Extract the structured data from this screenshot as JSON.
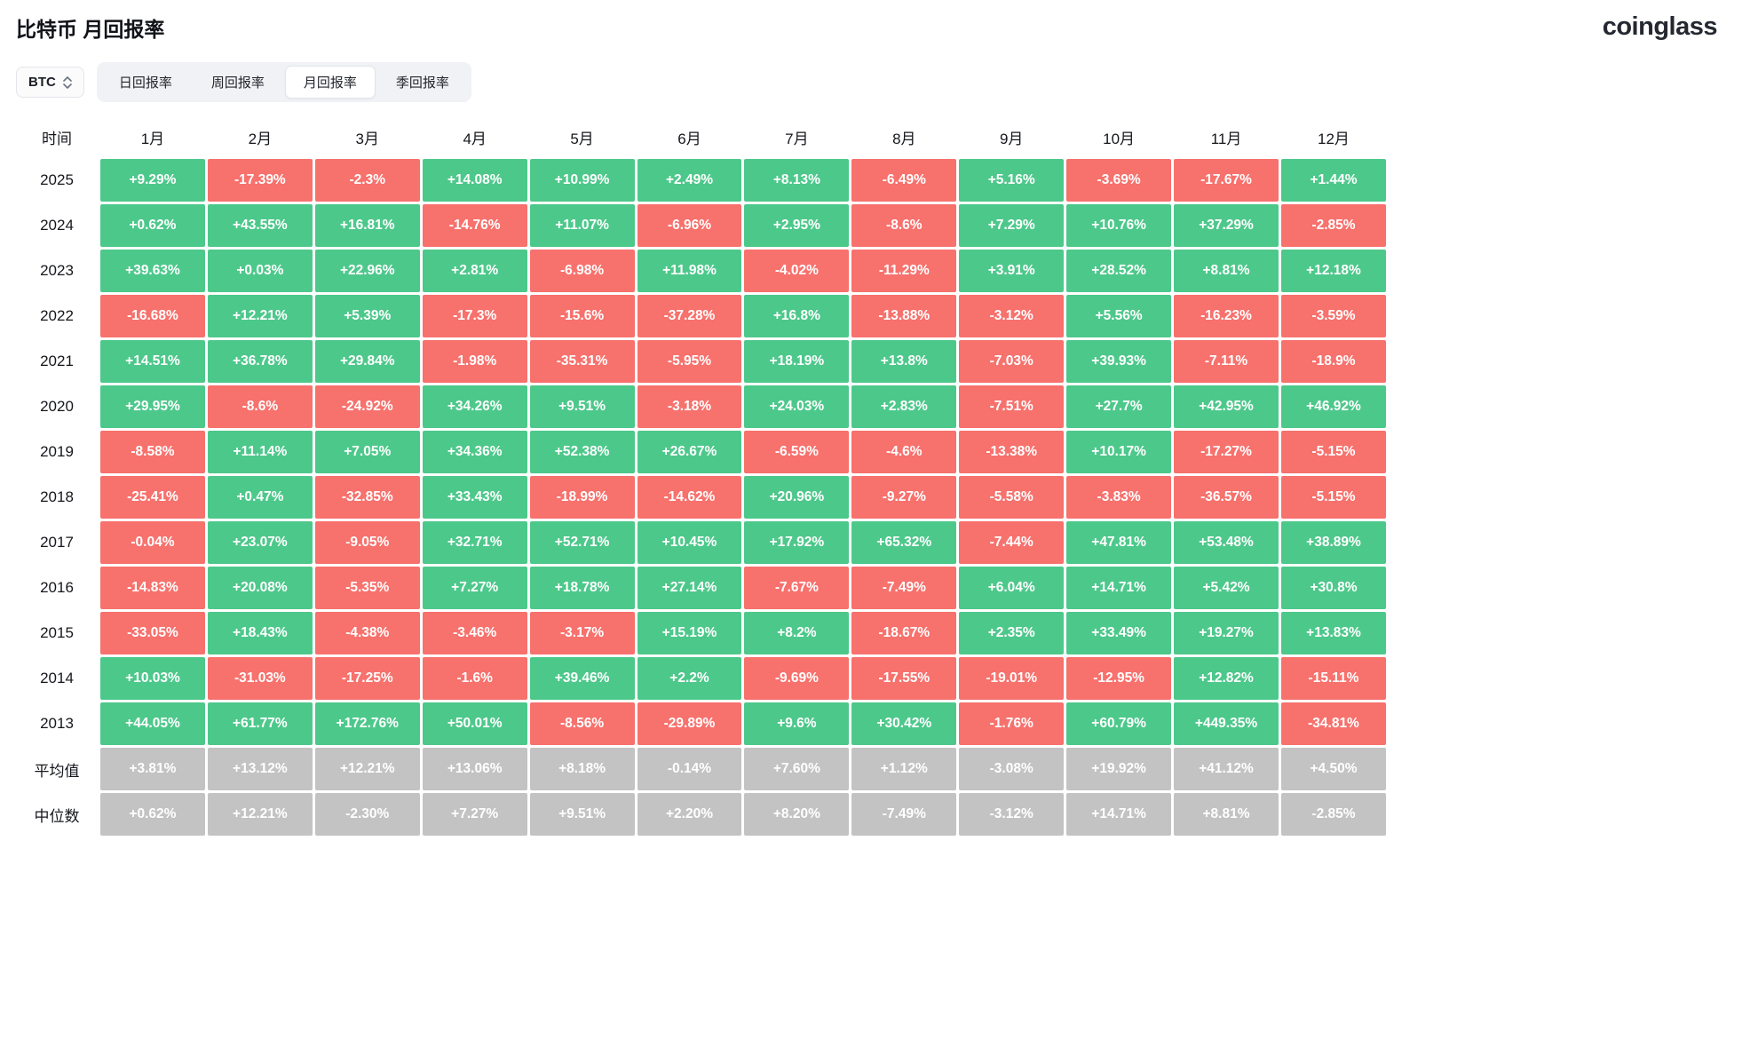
{
  "page": {
    "title": "比特币 月回报率",
    "logo": "coinglass"
  },
  "controls": {
    "symbol": "BTC",
    "tabs": [
      {
        "label": "日回报率",
        "active": false
      },
      {
        "label": "周回报率",
        "active": false
      },
      {
        "label": "月回报率",
        "active": true
      },
      {
        "label": "季回报率",
        "active": false
      }
    ]
  },
  "colors": {
    "positive": "#4dc88b",
    "negative": "#f7716d",
    "summary": "#c3c3c3"
  },
  "chart_data": {
    "type": "heatmap",
    "title": "比特币 月回报率",
    "legend_position": "none",
    "grid": false,
    "columns": [
      "时间",
      "1月",
      "2月",
      "3月",
      "4月",
      "5月",
      "6月",
      "7月",
      "8月",
      "9月",
      "10月",
      "11月",
      "12月"
    ],
    "rows": [
      {
        "label": "2025",
        "kind": "year",
        "values": [
          "+9.29%",
          "-17.39%",
          "-2.3%",
          "+14.08%",
          "+10.99%",
          "+2.49%",
          "+8.13%",
          "-6.49%",
          "+5.16%",
          "-3.69%",
          "-17.67%",
          "+1.44%"
        ]
      },
      {
        "label": "2024",
        "kind": "year",
        "values": [
          "+0.62%",
          "+43.55%",
          "+16.81%",
          "-14.76%",
          "+11.07%",
          "-6.96%",
          "+2.95%",
          "-8.6%",
          "+7.29%",
          "+10.76%",
          "+37.29%",
          "-2.85%"
        ]
      },
      {
        "label": "2023",
        "kind": "year",
        "values": [
          "+39.63%",
          "+0.03%",
          "+22.96%",
          "+2.81%",
          "-6.98%",
          "+11.98%",
          "-4.02%",
          "-11.29%",
          "+3.91%",
          "+28.52%",
          "+8.81%",
          "+12.18%"
        ]
      },
      {
        "label": "2022",
        "kind": "year",
        "values": [
          "-16.68%",
          "+12.21%",
          "+5.39%",
          "-17.3%",
          "-15.6%",
          "-37.28%",
          "+16.8%",
          "-13.88%",
          "-3.12%",
          "+5.56%",
          "-16.23%",
          "-3.59%"
        ]
      },
      {
        "label": "2021",
        "kind": "year",
        "values": [
          "+14.51%",
          "+36.78%",
          "+29.84%",
          "-1.98%",
          "-35.31%",
          "-5.95%",
          "+18.19%",
          "+13.8%",
          "-7.03%",
          "+39.93%",
          "-7.11%",
          "-18.9%"
        ]
      },
      {
        "label": "2020",
        "kind": "year",
        "values": [
          "+29.95%",
          "-8.6%",
          "-24.92%",
          "+34.26%",
          "+9.51%",
          "-3.18%",
          "+24.03%",
          "+2.83%",
          "-7.51%",
          "+27.7%",
          "+42.95%",
          "+46.92%"
        ]
      },
      {
        "label": "2019",
        "kind": "year",
        "values": [
          "-8.58%",
          "+11.14%",
          "+7.05%",
          "+34.36%",
          "+52.38%",
          "+26.67%",
          "-6.59%",
          "-4.6%",
          "-13.38%",
          "+10.17%",
          "-17.27%",
          "-5.15%"
        ]
      },
      {
        "label": "2018",
        "kind": "year",
        "values": [
          "-25.41%",
          "+0.47%",
          "-32.85%",
          "+33.43%",
          "-18.99%",
          "-14.62%",
          "+20.96%",
          "-9.27%",
          "-5.58%",
          "-3.83%",
          "-36.57%",
          "-5.15%"
        ]
      },
      {
        "label": "2017",
        "kind": "year",
        "values": [
          "-0.04%",
          "+23.07%",
          "-9.05%",
          "+32.71%",
          "+52.71%",
          "+10.45%",
          "+17.92%",
          "+65.32%",
          "-7.44%",
          "+47.81%",
          "+53.48%",
          "+38.89%"
        ]
      },
      {
        "label": "2016",
        "kind": "year",
        "values": [
          "-14.83%",
          "+20.08%",
          "-5.35%",
          "+7.27%",
          "+18.78%",
          "+27.14%",
          "-7.67%",
          "-7.49%",
          "+6.04%",
          "+14.71%",
          "+5.42%",
          "+30.8%"
        ]
      },
      {
        "label": "2015",
        "kind": "year",
        "values": [
          "-33.05%",
          "+18.43%",
          "-4.38%",
          "-3.46%",
          "-3.17%",
          "+15.19%",
          "+8.2%",
          "-18.67%",
          "+2.35%",
          "+33.49%",
          "+19.27%",
          "+13.83%"
        ]
      },
      {
        "label": "2014",
        "kind": "year",
        "values": [
          "+10.03%",
          "-31.03%",
          "-17.25%",
          "-1.6%",
          "+39.46%",
          "+2.2%",
          "-9.69%",
          "-17.55%",
          "-19.01%",
          "-12.95%",
          "+12.82%",
          "-15.11%"
        ]
      },
      {
        "label": "2013",
        "kind": "year",
        "values": [
          "+44.05%",
          "+61.77%",
          "+172.76%",
          "+50.01%",
          "-8.56%",
          "-29.89%",
          "+9.6%",
          "+30.42%",
          "-1.76%",
          "+60.79%",
          "+449.35%",
          "-34.81%"
        ]
      },
      {
        "label": "平均值",
        "kind": "summary",
        "values": [
          "+3.81%",
          "+13.12%",
          "+12.21%",
          "+13.06%",
          "+8.18%",
          "-0.14%",
          "+7.60%",
          "+1.12%",
          "-3.08%",
          "+19.92%",
          "+41.12%",
          "+4.50%"
        ]
      },
      {
        "label": "中位数",
        "kind": "summary",
        "values": [
          "+0.62%",
          "+12.21%",
          "-2.30%",
          "+7.27%",
          "+9.51%",
          "+2.20%",
          "+8.20%",
          "-7.49%",
          "-3.12%",
          "+14.71%",
          "+8.81%",
          "-2.85%"
        ]
      }
    ]
  }
}
